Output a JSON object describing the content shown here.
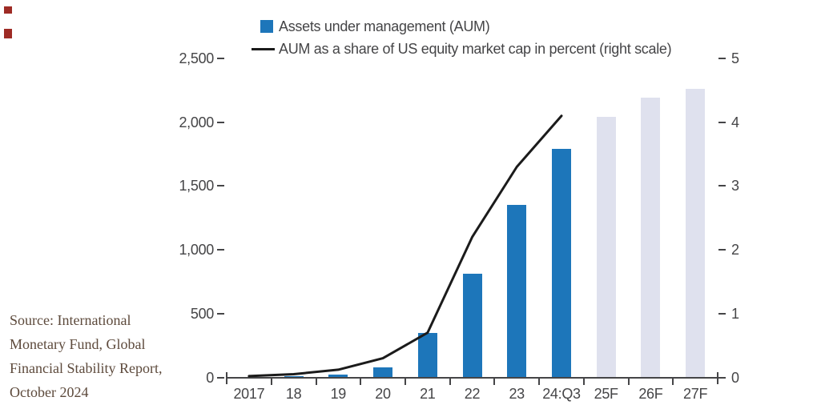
{
  "legend": [
    {
      "swatch": "blue-square",
      "label": "Assets under management (AUM)"
    },
    {
      "swatch": "black-line",
      "label": "AUM as a share of US equity market cap in percent (right scale)"
    }
  ],
  "source_note": {
    "lines": [
      "Source: International",
      "Monetary Fund, Global",
      "Financial Stability Report,",
      "October 2024"
    ]
  },
  "colors": {
    "bar": "#1d76ba",
    "forecast_bar": "#dfe1ee",
    "line": "#1b1b1b",
    "axis": "#454547",
    "text": "#454547",
    "source_text": "#5d4a3c",
    "marker_red": "#9e2b25"
  },
  "chart_data": {
    "type": "bar",
    "categories": [
      "2017",
      "18",
      "19",
      "20",
      "21",
      "22",
      "23",
      "24:Q3",
      "25F",
      "26F",
      "27F"
    ],
    "series": [
      {
        "name": "Assets under management (AUM)",
        "type": "bar",
        "axis": "left",
        "values": [
          3,
          8,
          20,
          80,
          350,
          815,
          1355,
          1790,
          2040,
          2190,
          2260
        ]
      },
      {
        "name": "AUM as a share of US equity market cap in percent (right scale)",
        "type": "line",
        "axis": "right",
        "values": [
          0.02,
          0.05,
          0.12,
          0.3,
          0.7,
          2.2,
          3.3,
          4.1,
          null,
          null,
          null
        ]
      }
    ],
    "forecast_mask": [
      false,
      false,
      false,
      false,
      false,
      false,
      false,
      false,
      true,
      true,
      true
    ],
    "left_axis": {
      "ticks": [
        "0",
        "500",
        "1,000",
        "1,500",
        "2,000",
        "2,500"
      ],
      "range": [
        0,
        2500
      ]
    },
    "right_axis": {
      "ticks": [
        "0",
        "1",
        "2",
        "3",
        "4",
        "5"
      ],
      "range": [
        0,
        5
      ]
    },
    "legend_position": "top",
    "grid": false,
    "title": ""
  }
}
